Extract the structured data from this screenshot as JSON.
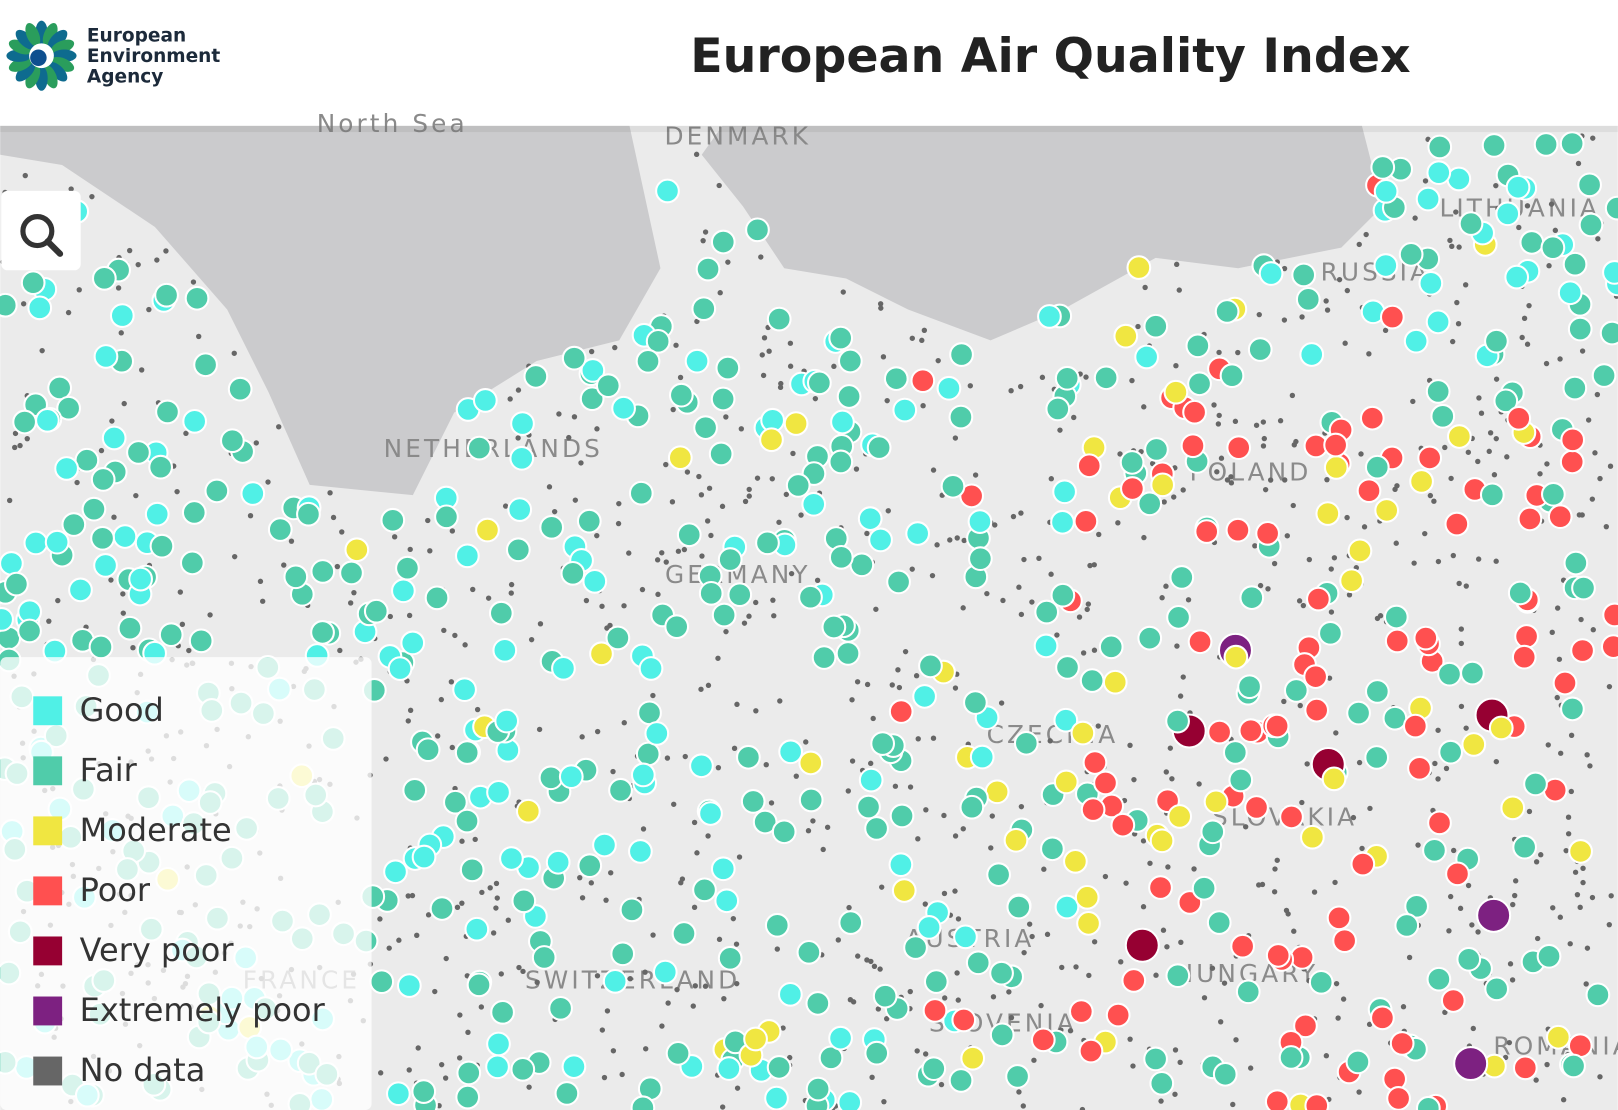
{
  "header": {
    "logo_text": [
      "European",
      "Environment",
      "Agency"
    ],
    "title": "European Air Quality Index"
  },
  "map": {
    "labels": [
      "North Sea",
      "DENMARK",
      "LITHUANIA",
      "RUSSIA",
      "NETHERLANDS",
      "POLAND",
      "GERMANY",
      "CZECHIA",
      "SLOVAKIA",
      "AUSTRIA",
      "SWITZERLAND",
      "FRANCE",
      "HUNGARY",
      "SLOVENIA",
      "ROMANIA"
    ]
  },
  "legend": {
    "items": [
      {
        "label": "Good",
        "color": "#50f0e6"
      },
      {
        "label": "Fair",
        "color": "#50ccaa"
      },
      {
        "label": "Moderate",
        "color": "#f0e641"
      },
      {
        "label": "Poor",
        "color": "#ff5050"
      },
      {
        "label": "Very poor",
        "color": "#960032"
      },
      {
        "label": "Extremely poor",
        "color": "#7d2181"
      },
      {
        "label": "No data",
        "color": "#666666"
      }
    ]
  }
}
